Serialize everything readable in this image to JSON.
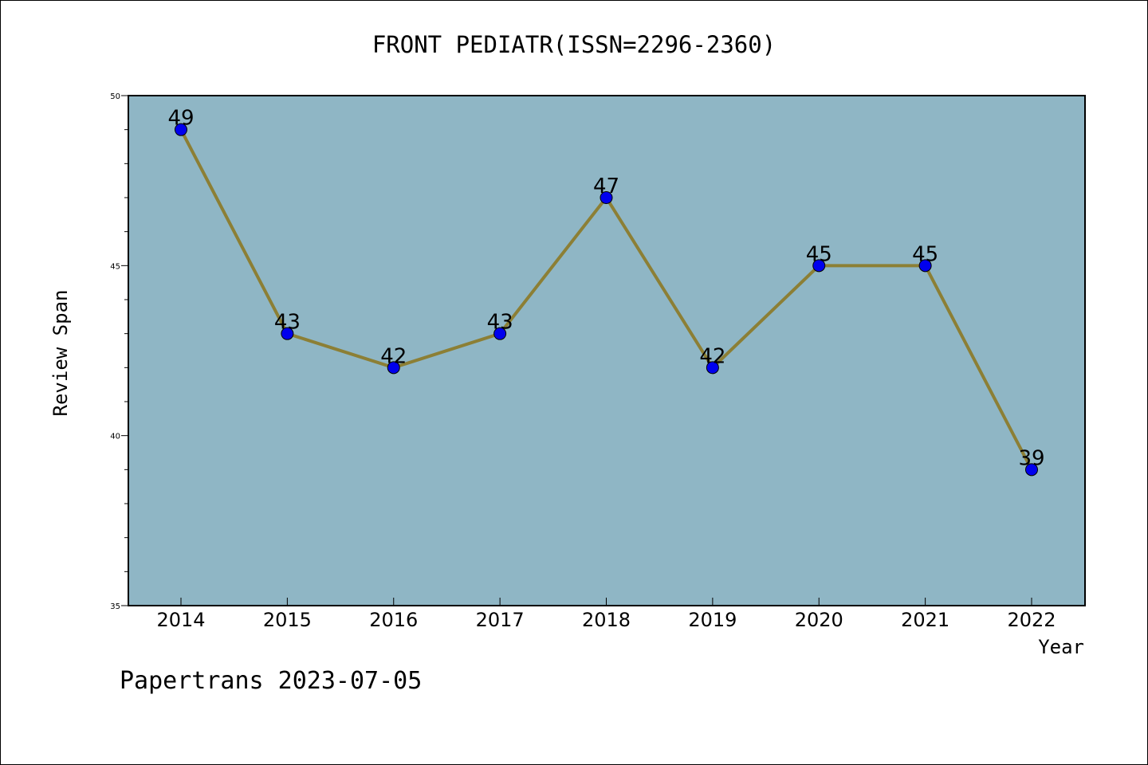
{
  "chart_data": {
    "type": "line",
    "title": "FRONT PEDIATR(ISSN=2296-2360)",
    "xlabel": "Year",
    "ylabel": "Review Span",
    "categories": [
      "2014",
      "2015",
      "2016",
      "2017",
      "2018",
      "2019",
      "2020",
      "2021",
      "2022"
    ],
    "values": [
      49,
      43,
      42,
      43,
      47,
      42,
      45,
      45,
      39
    ],
    "ylim": [
      35,
      50
    ],
    "yticks": [
      "35",
      "40",
      "45",
      "50"
    ],
    "grid": false,
    "colors": {
      "plot_background": "#8fb6c5",
      "line": "#8c7f35",
      "marker": "#0000ee"
    }
  },
  "footer": {
    "watermark": "Papertrans 2023-07-05"
  }
}
